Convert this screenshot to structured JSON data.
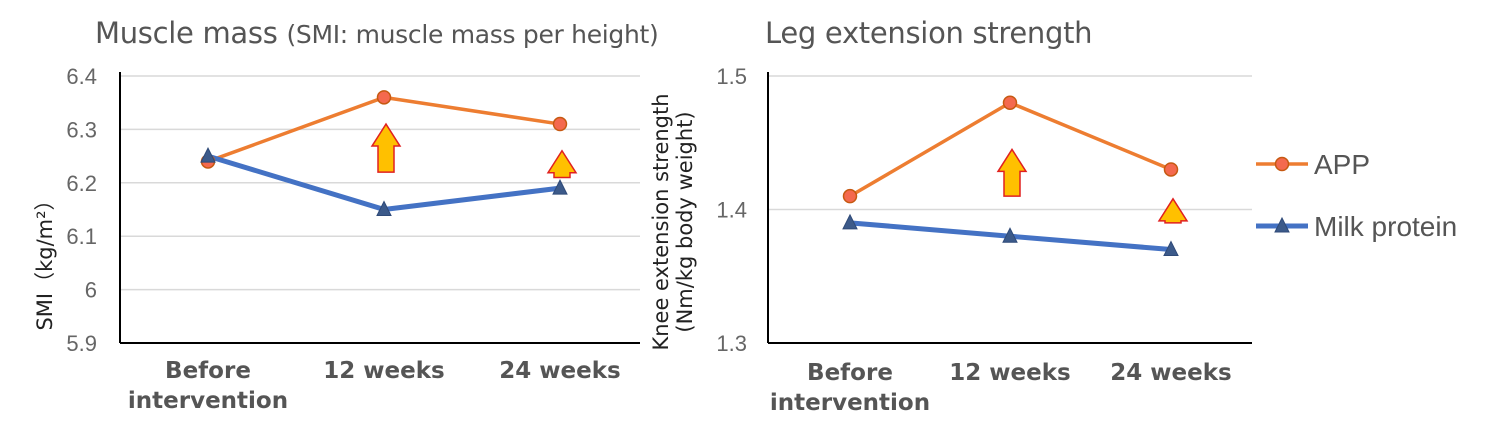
{
  "chart_data": [
    {
      "type": "line",
      "title": "Muscle mass",
      "subtitle": "(SMI: muscle mass per height)",
      "ylabel": "SMI（kg/m²）",
      "categories": [
        "Before intervention",
        "12 weeks",
        "24 weeks"
      ],
      "ylim": [
        5.9,
        6.4
      ],
      "yticks": [
        "6.4",
        "6.3",
        "6.2",
        "6.1",
        "6",
        "5.9"
      ],
      "series": [
        {
          "name": "APP",
          "values": [
            6.24,
            6.36,
            6.31
          ]
        },
        {
          "name": "Milk protein",
          "values": [
            6.25,
            6.15,
            6.19
          ]
        }
      ],
      "annotations": [
        {
          "type": "arrow-up",
          "category": "12 weeks",
          "from": 6.22,
          "to": 6.31
        },
        {
          "type": "arrow-up",
          "category": "24 weeks",
          "from": 6.21,
          "to": 6.26
        }
      ],
      "grid": true
    },
    {
      "type": "line",
      "title": "Leg extension strength",
      "ylabel": "Knee extension strength (Nm/kg body weight)",
      "categories": [
        "Before intervention",
        "12 weeks",
        "24 weeks"
      ],
      "ylim": [
        1.3,
        1.5
      ],
      "yticks": [
        "1.5",
        "1.4",
        "1.3"
      ],
      "series": [
        {
          "name": "APP",
          "values": [
            1.41,
            1.48,
            1.43
          ]
        },
        {
          "name": "Milk protein",
          "values": [
            1.39,
            1.38,
            1.37
          ]
        }
      ],
      "annotations": [
        {
          "type": "arrow-up",
          "category": "12 weeks",
          "from": 1.41,
          "to": 1.445
        },
        {
          "type": "arrow-up",
          "category": "24 weeks",
          "from": 1.39,
          "to": 1.408
        }
      ],
      "grid": true
    }
  ],
  "legend": {
    "position": "right",
    "items": [
      {
        "name": "APP",
        "marker": "circle",
        "color": "#ed7d31",
        "marker_fill": "#f4694e"
      },
      {
        "name": "Milk protein",
        "marker": "triangle",
        "color": "#4472c4",
        "marker_fill": "#3c5a8a"
      }
    ]
  },
  "colors": {
    "app_line": "#ed7d31",
    "milk_line": "#4472c4",
    "arrow_fill": "#ffc000",
    "arrow_stroke": "#e02020",
    "grid": "#d9d9d9",
    "axis": "#000000"
  }
}
